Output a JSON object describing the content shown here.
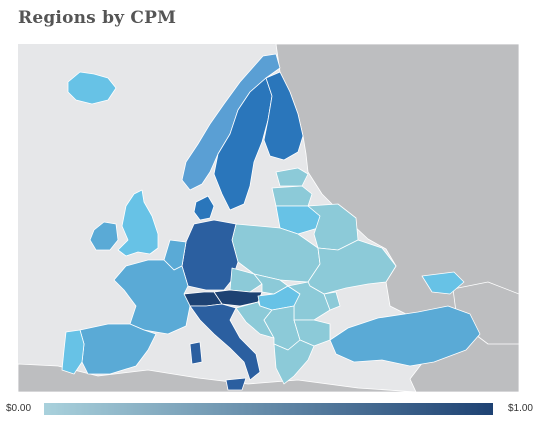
{
  "title": "Regions by CPM",
  "legend": {
    "min_label": "$0.00",
    "max_label": "$1.00",
    "min_color": "#a9d1dc",
    "max_color": "#1e4273"
  },
  "colors": {
    "ocean": "#e6e7e9",
    "no_data_land": "#bdbec0",
    "border": "#ffffff"
  },
  "regions": [
    {
      "id": "iceland",
      "label": "Iceland",
      "color": "#67c2e6"
    },
    {
      "id": "ireland",
      "label": "Ireland",
      "color": "#5aaad6"
    },
    {
      "id": "united-kingdom",
      "label": "United Kingdom",
      "color": "#67c2e6"
    },
    {
      "id": "norway",
      "label": "Norway",
      "color": "#5a9fd4"
    },
    {
      "id": "sweden",
      "label": "Sweden",
      "color": "#2a76bb"
    },
    {
      "id": "finland",
      "label": "Finland",
      "color": "#2a76bb"
    },
    {
      "id": "denmark",
      "label": "Denmark",
      "color": "#2a76bb"
    },
    {
      "id": "estonia",
      "label": "Estonia",
      "color": "#8ccad8"
    },
    {
      "id": "latvia",
      "label": "Latvia",
      "color": "#8ccad8"
    },
    {
      "id": "lithuania",
      "label": "Lithuania",
      "color": "#67c2e6"
    },
    {
      "id": "belarus",
      "label": "Belarus",
      "color": "#8ccad8"
    },
    {
      "id": "ukraine",
      "label": "Ukraine",
      "color": "#8ccad8"
    },
    {
      "id": "poland",
      "label": "Poland",
      "color": "#8ccad8"
    },
    {
      "id": "germany",
      "label": "Germany",
      "color": "#2b5fa0"
    },
    {
      "id": "netherlands-belgium",
      "label": "Benelux",
      "color": "#5aaad6"
    },
    {
      "id": "france",
      "label": "France",
      "color": "#5aaad6"
    },
    {
      "id": "spain",
      "label": "Spain",
      "color": "#5aaad6"
    },
    {
      "id": "portugal",
      "label": "Portugal",
      "color": "#67c2e6"
    },
    {
      "id": "switzerland",
      "label": "Switzerland",
      "color": "#1e4273"
    },
    {
      "id": "austria",
      "label": "Austria",
      "color": "#1e4273"
    },
    {
      "id": "czechia",
      "label": "Czechia",
      "color": "#8ccad8"
    },
    {
      "id": "slovakia",
      "label": "Slovakia",
      "color": "#8ccad8"
    },
    {
      "id": "hungary",
      "label": "Hungary",
      "color": "#67c2e6"
    },
    {
      "id": "italy",
      "label": "Italy",
      "color": "#2b5fa0"
    },
    {
      "id": "slovenia-croatia",
      "label": "Slovenia / Croatia",
      "color": "#8ccad8"
    },
    {
      "id": "balkans",
      "label": "Balkans",
      "color": "#8ccad8"
    },
    {
      "id": "romania",
      "label": "Romania",
      "color": "#8ccad8"
    },
    {
      "id": "moldova",
      "label": "Moldova",
      "color": "#8ccad8"
    },
    {
      "id": "bulgaria",
      "label": "Bulgaria",
      "color": "#8ccad8"
    },
    {
      "id": "greece",
      "label": "Greece",
      "color": "#8ccad8"
    },
    {
      "id": "turkey",
      "label": "Turkey",
      "color": "#5aaad6"
    },
    {
      "id": "crimea",
      "label": "Crimea",
      "color": "#67c2e6"
    },
    {
      "id": "russia",
      "label": "Russia",
      "color": "#bdbec0"
    }
  ]
}
